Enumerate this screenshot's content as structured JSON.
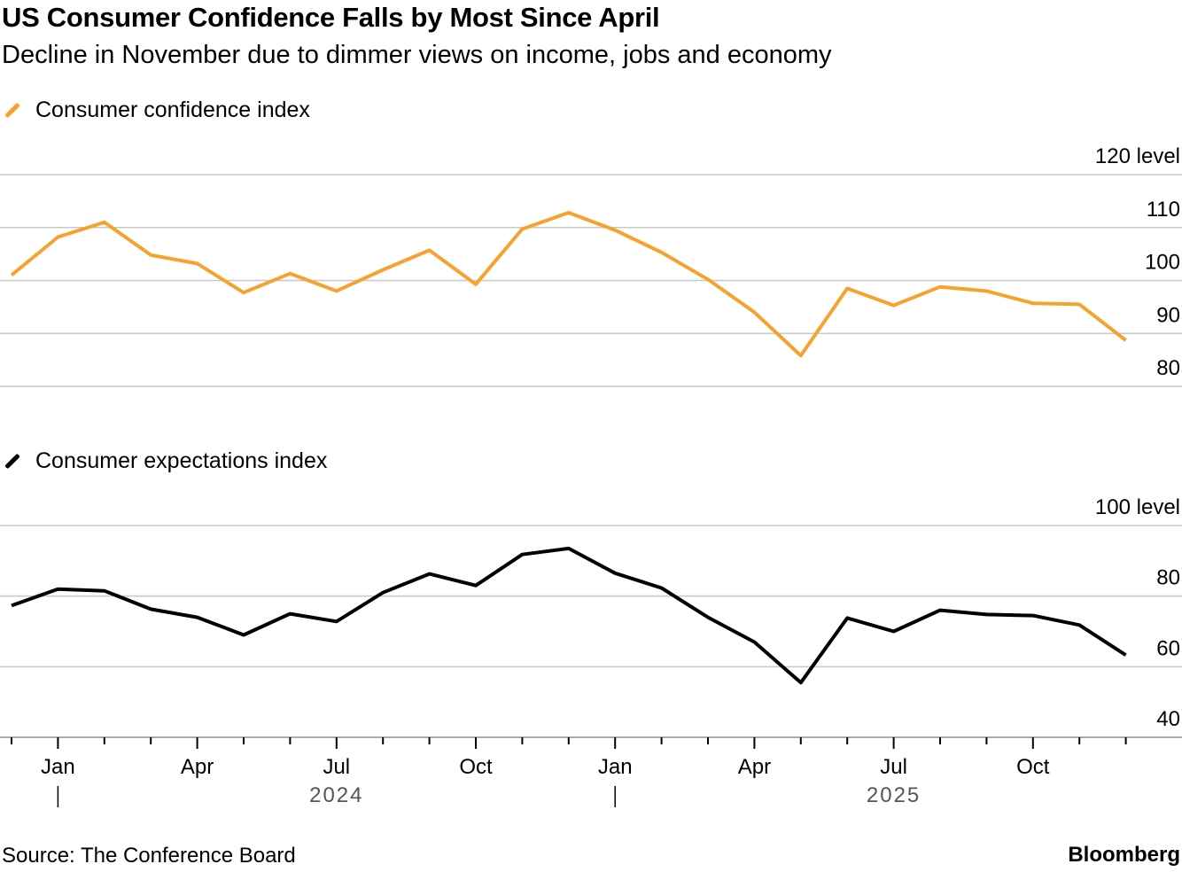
{
  "title": "US Consumer Confidence Falls by Most Since April",
  "subtitle": "Decline in November due to dimmer views on income, jobs and economy",
  "source": "Source: The Conference Board",
  "brand": "Bloomberg",
  "colors": {
    "confidence": "#f5a32e",
    "expectations": "#000000",
    "grid": "#c8c8c8"
  },
  "chart_data": [
    {
      "type": "line",
      "title": "Consumer confidence index",
      "legend": "Consumer confidence index",
      "unit_label": "120 level",
      "ylim": [
        80,
        120
      ],
      "yticks": [
        120,
        110,
        100,
        90,
        80
      ],
      "x": [
        "2023-11",
        "2023-12",
        "2024-01",
        "2024-02",
        "2024-03",
        "2024-04",
        "2024-05",
        "2024-06",
        "2024-07",
        "2024-08",
        "2024-09",
        "2024-10",
        "2024-11",
        "2024-12",
        "2025-01",
        "2025-02",
        "2025-03",
        "2025-04",
        "2025-05",
        "2025-06",
        "2025-07",
        "2025-08",
        "2025-09",
        "2025-10",
        "2025-11"
      ],
      "values": [
        101.0,
        108.2,
        111.0,
        104.8,
        103.2,
        97.7,
        101.3,
        98.0,
        102.0,
        105.7,
        99.3,
        109.7,
        112.8,
        109.5,
        105.3,
        100.2,
        94.0,
        85.8,
        98.5,
        95.3,
        98.8,
        98.0,
        95.7,
        95.5,
        88.7
      ]
    },
    {
      "type": "line",
      "title": "Consumer expectations index",
      "legend": "Consumer expectations index",
      "unit_label": "100 level",
      "ylim": [
        40,
        100
      ],
      "yticks": [
        100,
        80,
        60,
        40
      ],
      "x": [
        "2023-11",
        "2023-12",
        "2024-01",
        "2024-02",
        "2024-03",
        "2024-04",
        "2024-05",
        "2024-06",
        "2024-07",
        "2024-08",
        "2024-09",
        "2024-10",
        "2024-11",
        "2024-12",
        "2025-01",
        "2025-02",
        "2025-03",
        "2025-04",
        "2025-05",
        "2025-06",
        "2025-07",
        "2025-08",
        "2025-09",
        "2025-10",
        "2025-11"
      ],
      "values": [
        77.3,
        82.0,
        81.5,
        76.3,
        74.0,
        69.0,
        75.0,
        72.8,
        81.0,
        86.3,
        83.0,
        91.8,
        93.5,
        86.5,
        82.3,
        74.0,
        67.0,
        55.5,
        73.8,
        70.0,
        76.0,
        74.8,
        74.5,
        71.8,
        63.3
      ]
    }
  ],
  "xaxis": {
    "month_labels": [
      {
        "i": 1,
        "label": "Jan"
      },
      {
        "i": 4,
        "label": "Apr"
      },
      {
        "i": 7,
        "label": "Jul"
      },
      {
        "i": 10,
        "label": "Oct"
      },
      {
        "i": 13,
        "label": "Jan"
      },
      {
        "i": 16,
        "label": "Apr"
      },
      {
        "i": 19,
        "label": "Jul"
      },
      {
        "i": 22,
        "label": "Oct"
      }
    ],
    "years": [
      {
        "i": 7,
        "label": "2024"
      },
      {
        "i": 19,
        "label": "2025"
      }
    ],
    "year_separators": [
      1,
      13
    ]
  }
}
